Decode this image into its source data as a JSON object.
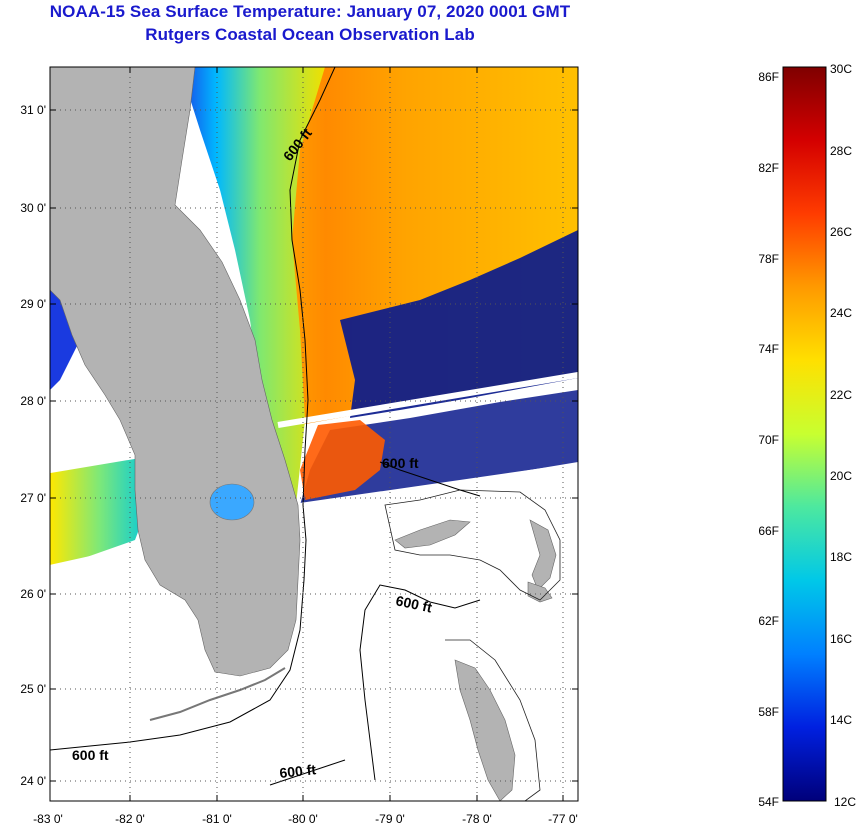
{
  "header": {
    "title": "NOAA-15 Sea Surface Temperature:  January 07, 2020 0001 GMT",
    "subtitle": "Rutgers Coastal Ocean Observation Lab"
  },
  "map": {
    "lat_labels": [
      "31 0'",
      "30 0'",
      "29 0'",
      "28 0'",
      "27 0'",
      "26 0'",
      "25 0'",
      "24 0'"
    ],
    "lon_labels": [
      "-83 0'",
      "-82 0'",
      "-81 0'",
      "-80 0'",
      "-79 0'",
      "-78 0'",
      "-77 0'"
    ],
    "contour_labels": [
      "600 ft",
      "600 ft",
      "600 ft",
      "600 ft",
      "600 ft"
    ],
    "colors": {
      "land": "#b3b3b3",
      "no_data": "#ffffff",
      "graticule": "#555555"
    }
  },
  "colorbar": {
    "fahrenheit_labels": [
      "86F",
      "82F",
      "78F",
      "74F",
      "70F",
      "66F",
      "62F",
      "58F",
      "54F"
    ],
    "celsius_labels": [
      "30C",
      "28C",
      "26C",
      "24C",
      "22C",
      "20C",
      "18C",
      "16C",
      "14C",
      "12C"
    ],
    "stops": [
      "#7f0000",
      "#d40000",
      "#ff3c00",
      "#ff9a00",
      "#ffe000",
      "#c8ff30",
      "#4ce8a0",
      "#00c8e8",
      "#0080ff",
      "#0020e0",
      "#00007a"
    ]
  }
}
